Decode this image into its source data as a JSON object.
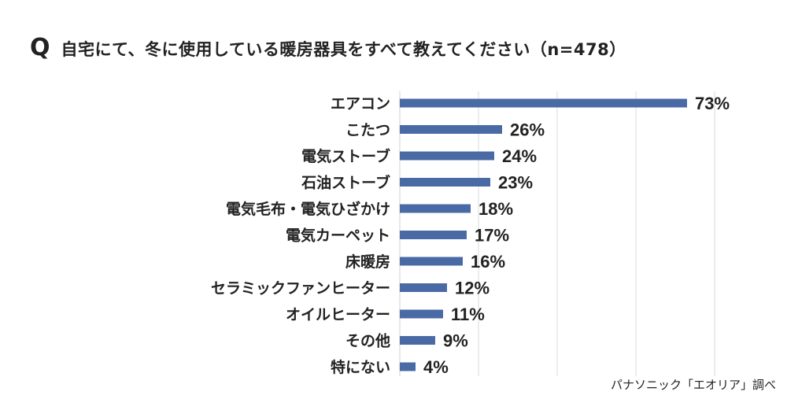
{
  "question": {
    "mark": "Q",
    "text": "自宅にて、冬に使用している暖房器具をすべて教えてください（n=478）"
  },
  "source": "パナソニック「エオリア」調べ",
  "colors": {
    "bar": "#4a6aa5",
    "grid": "#d9d9d9",
    "text": "#222222"
  },
  "chart_data": {
    "type": "bar",
    "orientation": "horizontal",
    "categories": [
      "エアコン",
      "こたつ",
      "電気ストーブ",
      "石油ストーブ",
      "電気毛布・電気ひざかけ",
      "電気カーペット",
      "床暖房",
      "セラミックファンヒーター",
      "オイルヒーター",
      "その他",
      "特にない"
    ],
    "values": [
      73,
      26,
      24,
      23,
      18,
      17,
      16,
      12,
      11,
      9,
      4
    ],
    "value_labels": [
      "73%",
      "26%",
      "24%",
      "23%",
      "18%",
      "17%",
      "16%",
      "12%",
      "11%",
      "9%",
      "4%"
    ],
    "xlim": [
      0,
      80
    ],
    "grid": true
  }
}
